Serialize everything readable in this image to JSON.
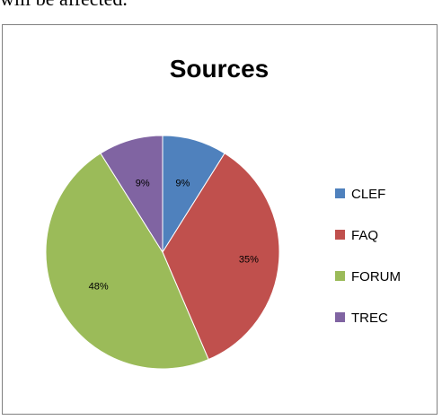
{
  "caption_fragment": "will be affected.",
  "chart_data": {
    "type": "pie",
    "title": "Sources",
    "legend_position": "right",
    "slices": [
      {
        "label": "CLEF",
        "value": 9,
        "percent_label": "9%",
        "color": "#4f81bd"
      },
      {
        "label": "FAQ",
        "value": 35,
        "percent_label": "35%",
        "color": "#c0504d"
      },
      {
        "label": "FORUM",
        "value": 48,
        "percent_label": "48%",
        "color": "#9bbb59"
      },
      {
        "label": "TREC",
        "value": 9,
        "percent_label": "9%",
        "color": "#8064a2"
      }
    ]
  }
}
